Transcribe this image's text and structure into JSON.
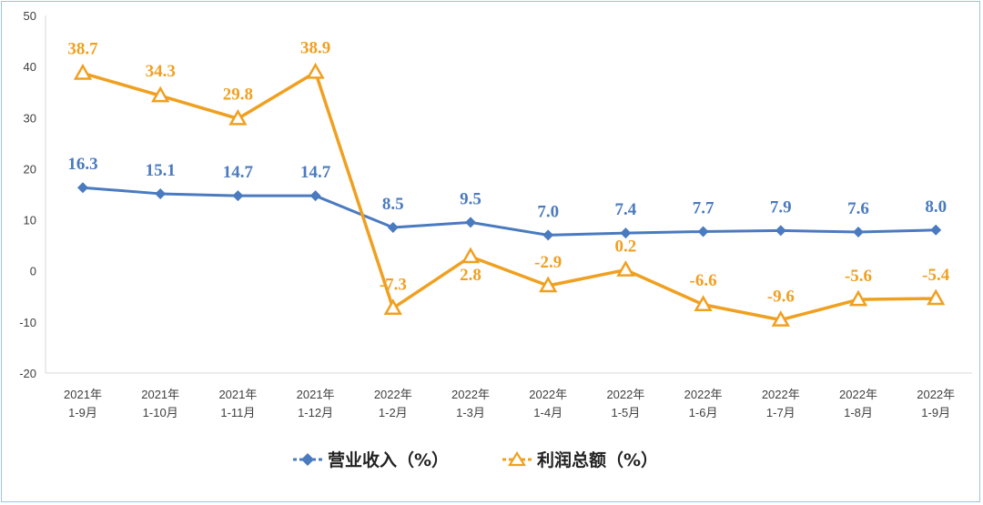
{
  "chart_data": {
    "type": "line",
    "categories": [
      [
        "2021年",
        "1-9月"
      ],
      [
        "2021年",
        "1-10月"
      ],
      [
        "2021年",
        "1-11月"
      ],
      [
        "2021年",
        "1-12月"
      ],
      [
        "2022年",
        "1-2月"
      ],
      [
        "2022年",
        "1-3月"
      ],
      [
        "2022年",
        "1-4月"
      ],
      [
        "2022年",
        "1-5月"
      ],
      [
        "2022年",
        "1-6月"
      ],
      [
        "2022年",
        "1-7月"
      ],
      [
        "2022年",
        "1-8月"
      ],
      [
        "2022年",
        "1-9月"
      ]
    ],
    "series": [
      {
        "name": "营业收入（%）",
        "color": "#4a7abf",
        "marker": "diamond",
        "values": [
          16.3,
          15.1,
          14.7,
          14.7,
          8.5,
          9.5,
          7.0,
          7.4,
          7.7,
          7.9,
          7.6,
          8.0
        ],
        "labels": [
          "16.3",
          "15.1",
          "14.7",
          "14.7",
          "8.5",
          "9.5",
          "7.0",
          "7.4",
          "7.7",
          "7.9",
          "7.6",
          "8.0"
        ]
      },
      {
        "name": "利润总额（%）",
        "color": "#f0a020",
        "marker": "triangle",
        "values": [
          38.7,
          34.3,
          29.8,
          38.9,
          -7.3,
          2.8,
          -2.9,
          0.2,
          -6.6,
          -9.6,
          -5.6,
          -5.4
        ],
        "labels": [
          "38.7",
          "34.3",
          "29.8",
          "38.9",
          "-7.3",
          "2.8",
          "-2.9",
          "0.2",
          "-6.6",
          "-9.6",
          "-5.6",
          "-5.4"
        ]
      }
    ],
    "ylim": [
      -20,
      50
    ],
    "yticks": [
      -20,
      -10,
      0,
      10,
      20,
      30,
      40,
      50
    ],
    "grid": false,
    "legend_position": "bottom"
  }
}
